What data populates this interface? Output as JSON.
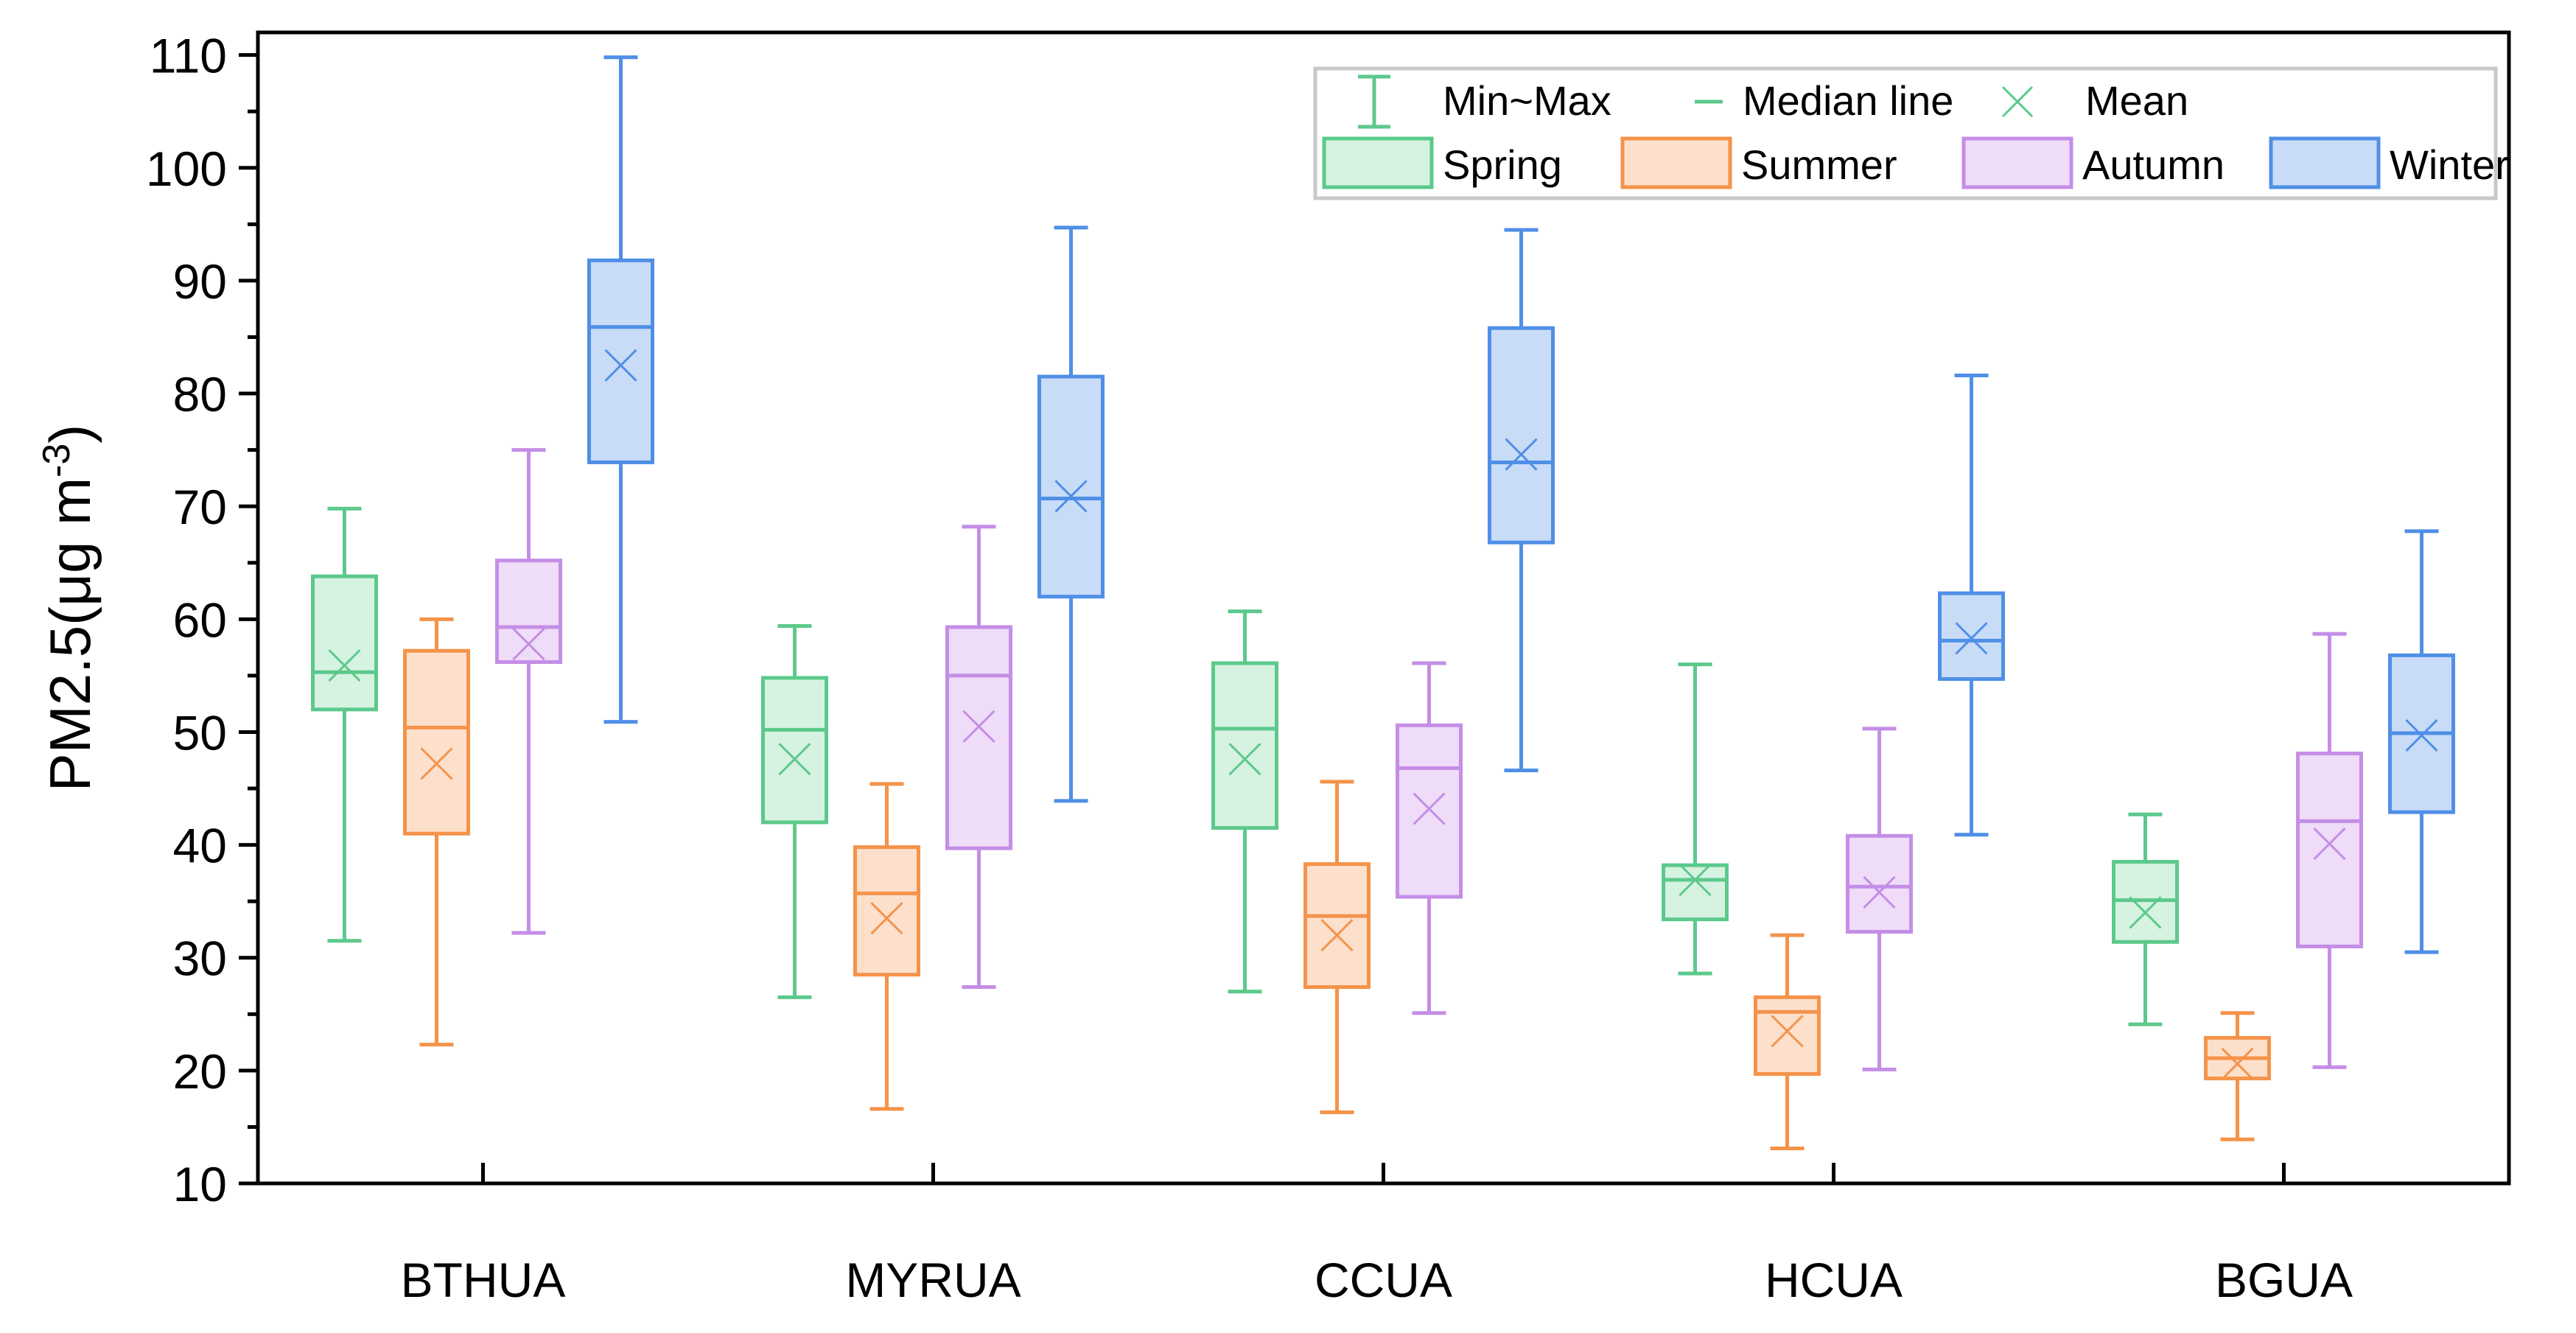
{
  "chart_data": {
    "type": "box",
    "ylabel": "PM2.5(μg m",
    "ylabel_superscript": "-3",
    "ylabel_close": ")",
    "ylim": [
      10,
      112
    ],
    "yticks": [
      10,
      20,
      30,
      40,
      50,
      60,
      70,
      80,
      90,
      100,
      110
    ],
    "grid": false,
    "legend_position": "top-right",
    "legend": {
      "minmax_label": "Min~Max",
      "median_label": "Median line",
      "mean_label": "Mean"
    },
    "categories": [
      "BTHUA",
      "MYRUA",
      "CCUA",
      "HCUA",
      "BGUA"
    ],
    "series": [
      {
        "name": "Spring",
        "color": "#5cc98b",
        "fill": "#d6f2e1",
        "boxes": [
          {
            "min": 31.5,
            "q1": 52.0,
            "median": 55.3,
            "q3": 63.8,
            "max": 69.8,
            "mean": 55.9
          },
          {
            "min": 26.5,
            "q1": 42.0,
            "median": 50.2,
            "q3": 54.8,
            "max": 59.4,
            "mean": 47.6
          },
          {
            "min": 27.0,
            "q1": 41.5,
            "median": 50.3,
            "q3": 56.1,
            "max": 60.7,
            "mean": 47.6
          },
          {
            "min": 28.6,
            "q1": 33.4,
            "median": 36.9,
            "q3": 38.2,
            "max": 56.0,
            "mean": 36.9
          },
          {
            "min": 24.1,
            "q1": 31.4,
            "median": 35.1,
            "q3": 38.5,
            "max": 42.7,
            "mean": 34.0
          }
        ]
      },
      {
        "name": "Summer",
        "color": "#f4934a",
        "fill": "#fde0cc",
        "boxes": [
          {
            "min": 22.3,
            "q1": 41.0,
            "median": 50.4,
            "q3": 57.2,
            "max": 60.0,
            "mean": 47.2
          },
          {
            "min": 16.6,
            "q1": 28.5,
            "median": 35.7,
            "q3": 39.8,
            "max": 45.4,
            "mean": 33.5
          },
          {
            "min": 16.3,
            "q1": 27.4,
            "median": 33.7,
            "q3": 38.3,
            "max": 45.6,
            "mean": 32.0
          },
          {
            "min": 13.1,
            "q1": 19.7,
            "median": 25.2,
            "q3": 26.5,
            "max": 32.0,
            "mean": 23.5
          },
          {
            "min": 13.9,
            "q1": 19.3,
            "median": 21.1,
            "q3": 22.9,
            "max": 25.1,
            "mean": 20.6
          }
        ]
      },
      {
        "name": "Autumn",
        "color": "#c48ee6",
        "fill": "#efdcf8",
        "boxes": [
          {
            "min": 32.2,
            "q1": 56.2,
            "median": 59.3,
            "q3": 65.2,
            "max": 75.0,
            "mean": 57.8
          },
          {
            "min": 27.4,
            "q1": 39.7,
            "median": 55.0,
            "q3": 59.3,
            "max": 68.2,
            "mean": 50.5
          },
          {
            "min": 25.1,
            "q1": 35.4,
            "median": 46.8,
            "q3": 50.6,
            "max": 56.1,
            "mean": 43.2
          },
          {
            "min": 20.1,
            "q1": 32.3,
            "median": 36.3,
            "q3": 40.8,
            "max": 50.3,
            "mean": 35.8
          },
          {
            "min": 20.3,
            "q1": 31.0,
            "median": 42.1,
            "q3": 48.1,
            "max": 58.7,
            "mean": 40.1
          }
        ]
      },
      {
        "name": "Winter",
        "color": "#4f8fe6",
        "fill": "#c9dcf7",
        "boxes": [
          {
            "min": 50.9,
            "q1": 73.9,
            "median": 85.9,
            "q3": 91.8,
            "max": 109.8,
            "mean": 82.5
          },
          {
            "min": 43.9,
            "q1": 62.0,
            "median": 70.7,
            "q3": 81.5,
            "max": 94.7,
            "mean": 70.9
          },
          {
            "min": 46.6,
            "q1": 66.8,
            "median": 73.9,
            "q3": 85.8,
            "max": 94.5,
            "mean": 74.6
          },
          {
            "min": 40.9,
            "q1": 54.7,
            "median": 58.1,
            "q3": 62.3,
            "max": 81.6,
            "mean": 58.3
          },
          {
            "min": 30.5,
            "q1": 42.9,
            "median": 49.9,
            "q3": 56.8,
            "max": 67.8,
            "mean": 49.7
          }
        ]
      }
    ]
  }
}
